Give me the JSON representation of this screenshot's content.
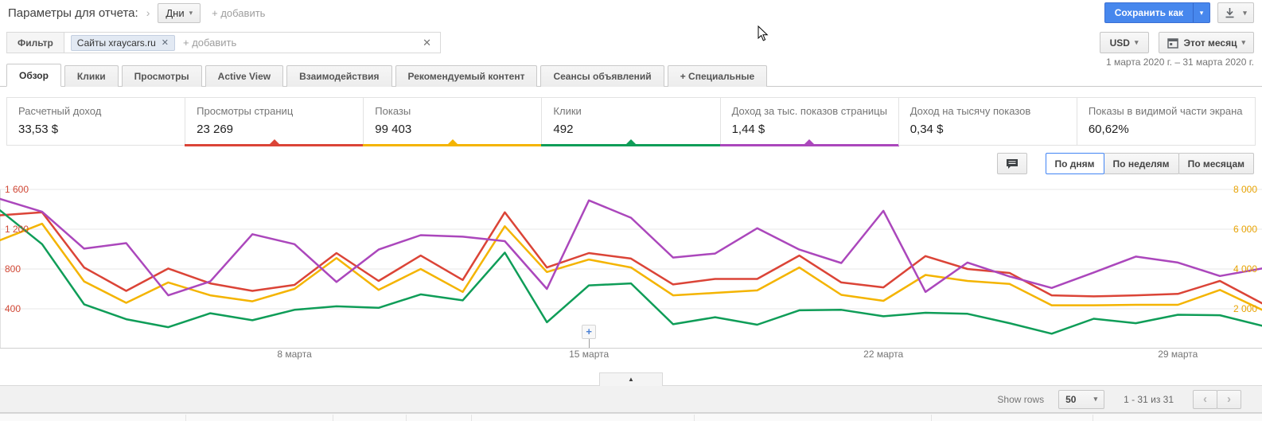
{
  "icons": {
    "breadcrumb": "›",
    "caret": "▾",
    "close": "✕",
    "collapse": "▲",
    "prev": "‹",
    "next": "›",
    "annotation_plus": "+"
  },
  "header": {
    "title": "Параметры для отчета:",
    "dimension_button": "Дни",
    "add_link": "+ добавить",
    "save_button": "Сохранить как"
  },
  "filter": {
    "label": "Фильтр",
    "chip_label": "Сайты xraycars.ru",
    "add_placeholder": "+ добавить",
    "currency": "USD",
    "period": "Этот месяц",
    "date_range": "1 марта 2020 г. – 31 марта 2020 г."
  },
  "tabs": [
    "Обзор",
    "Клики",
    "Просмотры",
    "Active View",
    "Взаимодействия",
    "Рекомендуемый контент",
    "Сеансы объявлений",
    "+ Специальные"
  ],
  "tabs_active_index": 0,
  "cards": [
    {
      "label": "Расчетный доход",
      "value": "33,53 $",
      "underline_color": null
    },
    {
      "label": "Просмотры страниц",
      "value": "23 269",
      "underline_color": "#db4437"
    },
    {
      "label": "Показы",
      "value": "99 403",
      "underline_color": "#f4b400"
    },
    {
      "label": "Клики",
      "value": "492",
      "underline_color": "#0f9d58"
    },
    {
      "label": "Доход за тыс. показов страницы",
      "value": "1,44 $",
      "underline_color": "#ab47bc"
    },
    {
      "label": "Доход на тысячу показов",
      "value": "0,34 $",
      "underline_color": null
    },
    {
      "label": "Показы в видимой части экрана",
      "value": "60,62%",
      "underline_color": null
    }
  ],
  "chart_controls": {
    "options": [
      "По дням",
      "По неделям",
      "По месяцам"
    ],
    "selected_index": 0
  },
  "chart_data": {
    "type": "line",
    "x_unit": "дни марта 2020",
    "x_days": [
      1,
      2,
      3,
      4,
      5,
      6,
      7,
      8,
      9,
      10,
      11,
      12,
      13,
      14,
      15,
      16,
      17,
      18,
      19,
      20,
      21,
      22,
      23,
      24,
      25,
      26,
      27,
      28,
      29,
      30,
      31
    ],
    "x_axis": {
      "ticks": [
        {
          "day": 8,
          "label": "8 марта"
        },
        {
          "day": 15,
          "label": "15 марта"
        },
        {
          "day": 22,
          "label": "22 марта"
        },
        {
          "day": 29,
          "label": "29 марта"
        }
      ]
    },
    "left_axis": {
      "color": "#d14836",
      "ticks": [
        400,
        800,
        1200,
        1600
      ],
      "labels": [
        "400",
        "800",
        "1 200",
        "1 600"
      ]
    },
    "right_axis": {
      "color": "#e8a303",
      "ticks": [
        2000,
        4000,
        6000,
        8000
      ],
      "labels": [
        "2 000",
        "4 000",
        "6 000",
        "8 000"
      ]
    },
    "grid": true,
    "series": [
      {
        "name": "Просмотры страниц",
        "color": "#db4437",
        "axis": "left",
        "values": [
          1340,
          1370,
          815,
          580,
          805,
          655,
          580,
          640,
          960,
          680,
          935,
          690,
          1370,
          815,
          960,
          905,
          645,
          700,
          700,
          935,
          665,
          615,
          930,
          800,
          760,
          535,
          525,
          535,
          550,
          680,
          455
        ]
      },
      {
        "name": "Показы",
        "color": "#f4b400",
        "axis": "right",
        "values": [
          5450,
          6275,
          3375,
          2300,
          3325,
          2675,
          2375,
          3000,
          4550,
          2950,
          4000,
          2850,
          6150,
          3850,
          4475,
          4075,
          2675,
          2800,
          2925,
          4075,
          2700,
          2400,
          3700,
          3400,
          3250,
          2175,
          2175,
          2200,
          2200,
          2950,
          1950
        ]
      },
      {
        "name": "Клики",
        "color": "#0f9d58",
        "axis": "hidden",
        "display_scale": "left",
        "values": [
          1390,
          1050,
          445,
          295,
          215,
          355,
          285,
          390,
          425,
          410,
          545,
          485,
          965,
          265,
          635,
          655,
          245,
          315,
          240,
          385,
          390,
          325,
          360,
          350,
          255,
          150,
          300,
          255,
          340,
          335,
          230
        ]
      },
      {
        "name": "Доход за тыс. показов страницы",
        "color": "#ab47bc",
        "axis": "hidden",
        "display_scale": "left",
        "values": [
          1505,
          1375,
          1005,
          1060,
          535,
          675,
          1150,
          1050,
          670,
          995,
          1140,
          1125,
          1080,
          600,
          1490,
          1315,
          915,
          955,
          1210,
          995,
          860,
          1385,
          570,
          865,
          725,
          610,
          765,
          925,
          865,
          730,
          805
        ]
      }
    ],
    "annotation": {
      "day": 15,
      "symbol": "+"
    }
  },
  "footer": {
    "show_rows_label": "Show rows",
    "rows_per_page": "50",
    "range_text": "1 - 31 из 31"
  }
}
